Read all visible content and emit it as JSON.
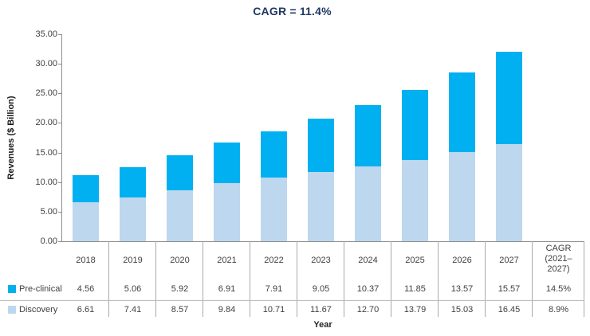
{
  "chart_data": {
    "type": "bar",
    "stacked": true,
    "title": "CAGR = 11.4%",
    "xlabel": "Year",
    "ylabel": "Revenues ($ Billion)",
    "ylim": [
      0,
      35
    ],
    "ytick_step": 5,
    "ytick_labels": [
      "0.00",
      "5.00",
      "10.00",
      "15.00",
      "20.00",
      "25.00",
      "30.00",
      "35.00"
    ],
    "grid": false,
    "legend_position": "table-rows-left",
    "categories": [
      "2018",
      "2019",
      "2020",
      "2021",
      "2022",
      "2023",
      "2024",
      "2025",
      "2026",
      "2027"
    ],
    "series": [
      {
        "name": "Pre-clinical",
        "color": "#00B0F0",
        "values": [
          4.56,
          5.06,
          5.92,
          6.91,
          7.91,
          9.05,
          10.37,
          11.85,
          13.57,
          15.57
        ],
        "cagr": "14.5%"
      },
      {
        "name": "Discovery",
        "color": "#BDD7EE",
        "values": [
          6.61,
          7.41,
          8.57,
          9.84,
          10.71,
          11.67,
          12.7,
          13.79,
          15.03,
          16.45
        ],
        "cagr": "8.9%"
      }
    ],
    "extra_column": {
      "header_lines": [
        "CAGR",
        "(2021–",
        "2027)"
      ]
    }
  },
  "colors": {
    "title": "#1F3864",
    "axis": "#8C8C8C",
    "table_line": "#A9A9A9",
    "text": "#404040",
    "preclinical": "#00B0F0",
    "discovery": "#BDD7EE"
  }
}
